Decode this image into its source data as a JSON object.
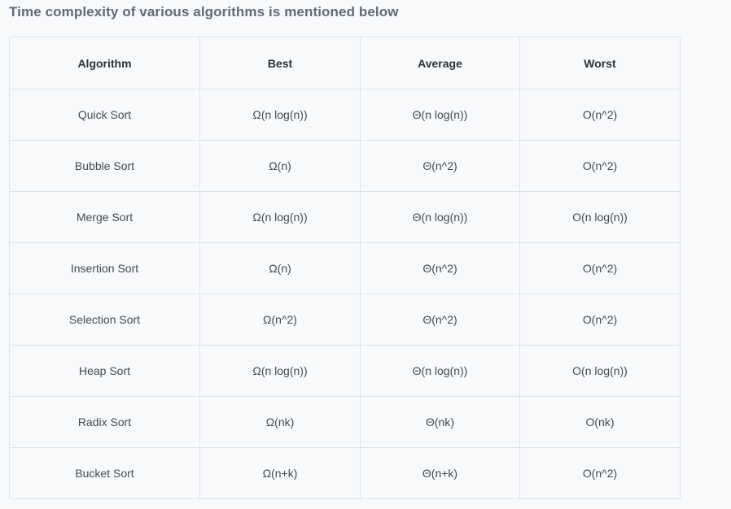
{
  "title": "Time complexity of various algorithms is mentioned below",
  "table": {
    "headers": [
      "Algorithm",
      "Best",
      "Average",
      "Worst"
    ],
    "rows": [
      [
        "Quick Sort",
        "Ω(n log(n))",
        "Θ(n log(n))",
        "O(n^2)"
      ],
      [
        "Bubble Sort",
        "Ω(n)",
        "Θ(n^2)",
        "O(n^2)"
      ],
      [
        "Merge Sort",
        "Ω(n log(n))",
        "Θ(n log(n))",
        "O(n log(n))"
      ],
      [
        "Insertion Sort",
        "Ω(n)",
        "Θ(n^2)",
        "O(n^2)"
      ],
      [
        "Selection Sort",
        "Ω(n^2)",
        "Θ(n^2)",
        "O(n^2)"
      ],
      [
        "Heap Sort",
        "Ω(n log(n))",
        "Θ(n log(n))",
        "O(n log(n))"
      ],
      [
        "Radix Sort",
        "Ω(nk)",
        "Θ(nk)",
        "O(nk)"
      ],
      [
        "Bucket Sort",
        "Ω(n+k)",
        "Θ(n+k)",
        "O(n^2)"
      ]
    ]
  },
  "colors": {
    "title": "#5f6b78",
    "border": "#dfe3e8",
    "background": "#f8f9fb",
    "text": "#273239"
  }
}
